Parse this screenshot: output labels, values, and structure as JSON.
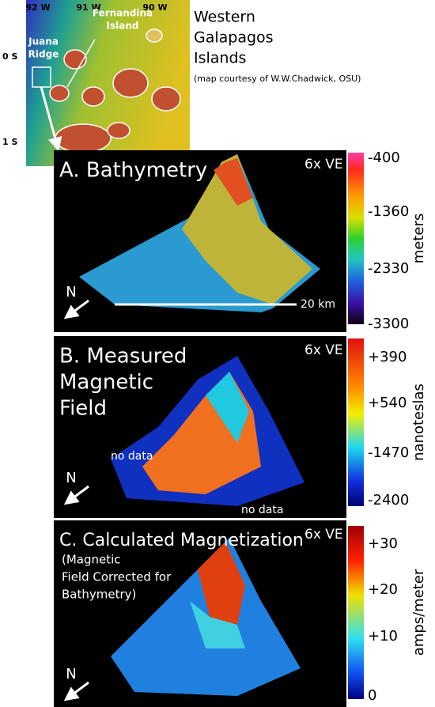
{
  "map": {
    "lon_labels": [
      "92 W",
      "91 W",
      "90 W"
    ],
    "lat_labels": [
      "0 S",
      "1 S"
    ],
    "labels": [
      [
        "Juana",
        "Ridge"
      ],
      [
        "Fernandina",
        "Island"
      ]
    ],
    "title": [
      "Western",
      "Galapagos",
      "Islands"
    ],
    "credit": "(map courtesy of W.W.Chadwick, OSU)"
  },
  "panels": [
    {
      "title": [
        "A. Bathymetry"
      ],
      "ve": "6x VE",
      "scale": [
        "-400",
        "-1360",
        "-2330",
        "-3300"
      ],
      "unit": "meters",
      "north": "N",
      "scale_bar": "20 km"
    },
    {
      "title": [
        "B. Measured",
        "Magnetic",
        "Field"
      ],
      "ve": "6x VE",
      "scale": [
        "+390",
        "+540",
        "-1470",
        "-2400"
      ],
      "unit": "nanoteslas",
      "north": "N",
      "notes": [
        "no data",
        "no data"
      ]
    },
    {
      "title": [
        "C. Calculated Magnetization"
      ],
      "subtitle": [
        "(Magnetic",
        "Field Corrected for",
        "Bathymetry)"
      ],
      "ve": "6x VE",
      "scale": [
        "+30",
        "+20",
        "+10",
        "0"
      ],
      "unit": "amps/meter",
      "north": "N"
    }
  ]
}
